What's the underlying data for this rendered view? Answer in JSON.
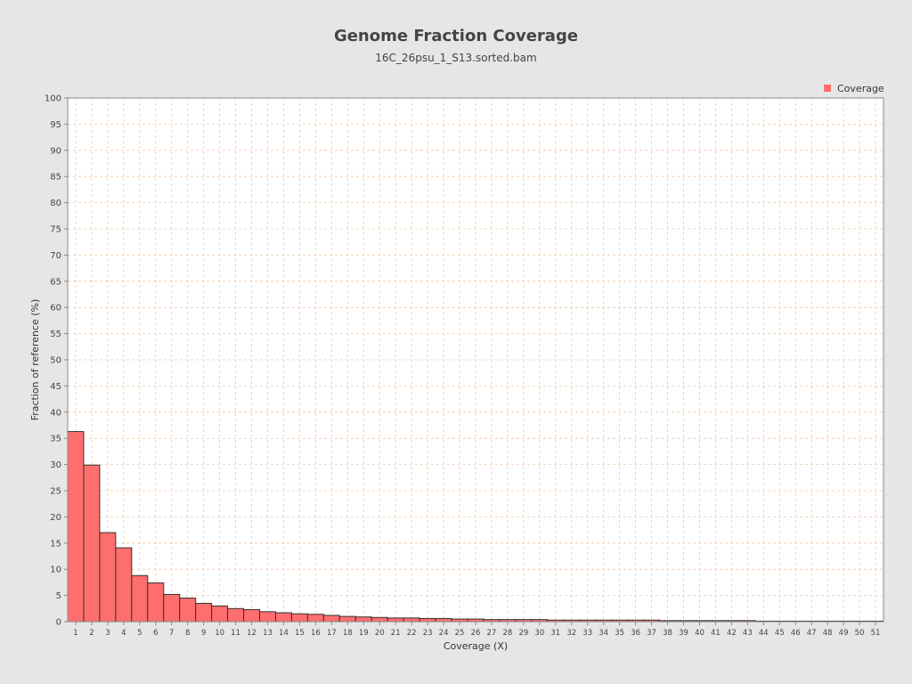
{
  "chart_data": {
    "type": "bar",
    "title": "Genome Fraction Coverage",
    "subtitle": "16C_26psu_1_S13.sorted.bam",
    "xlabel": "Coverage (X)",
    "ylabel": "Fraction of reference (%)",
    "ylim": [
      0,
      100
    ],
    "yticks": [
      0,
      5,
      10,
      15,
      20,
      25,
      30,
      35,
      40,
      45,
      50,
      55,
      60,
      65,
      70,
      75,
      80,
      85,
      90,
      95,
      100
    ],
    "grid": true,
    "legend_position": "top-right",
    "categories": [
      "1",
      "2",
      "3",
      "4",
      "5",
      "6",
      "7",
      "8",
      "9",
      "10",
      "11",
      "12",
      "13",
      "14",
      "15",
      "16",
      "17",
      "18",
      "19",
      "20",
      "21",
      "22",
      "23",
      "24",
      "25",
      "26",
      "27",
      "28",
      "29",
      "30",
      "31",
      "32",
      "33",
      "34",
      "35",
      "36",
      "37",
      "38",
      "39",
      "40",
      "41",
      "42",
      "43",
      "44",
      "45",
      "46",
      "47",
      "48",
      "49",
      "50",
      "51"
    ],
    "series": [
      {
        "name": "Coverage",
        "color": "#ff6e6e",
        "values": [
          36.3,
          29.9,
          17.0,
          14.1,
          8.8,
          7.4,
          5.2,
          4.5,
          3.5,
          3.0,
          2.5,
          2.3,
          1.9,
          1.7,
          1.5,
          1.4,
          1.2,
          1.0,
          0.9,
          0.8,
          0.7,
          0.7,
          0.6,
          0.6,
          0.5,
          0.5,
          0.4,
          0.4,
          0.4,
          0.4,
          0.3,
          0.3,
          0.3,
          0.3,
          0.3,
          0.3,
          0.3,
          0.2,
          0.2,
          0.2,
          0.2,
          0.2,
          0.2,
          0.1,
          0.1,
          0.1,
          0.1,
          0.1,
          0.1,
          0.1,
          0.1
        ]
      }
    ]
  }
}
